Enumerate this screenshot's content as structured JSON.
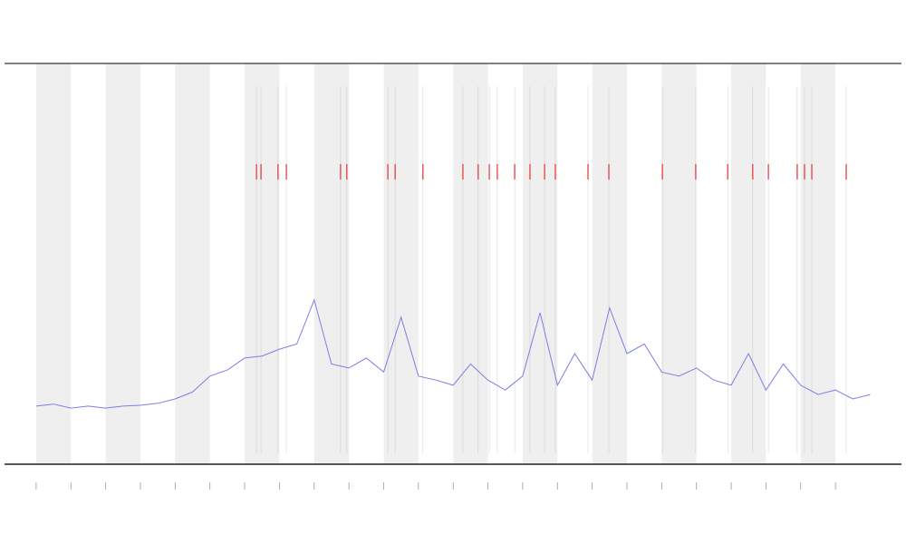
{
  "chart_data": {
    "type": "line",
    "xlim": [
      -0.91,
      24.9
    ],
    "ylim": [
      0,
      100
    ],
    "xticks": [
      0,
      1,
      2,
      3,
      4,
      5,
      6,
      7,
      8,
      9,
      10,
      11,
      12,
      13,
      14,
      15,
      16,
      17,
      18,
      19,
      20,
      21,
      22,
      23
    ],
    "bands": [
      [
        0,
        1
      ],
      [
        2,
        3
      ],
      [
        4,
        5
      ],
      [
        6,
        7
      ],
      [
        8,
        9
      ],
      [
        10,
        11
      ],
      [
        12,
        13
      ],
      [
        14,
        15
      ],
      [
        16,
        17
      ],
      [
        18,
        19
      ],
      [
        20,
        21
      ],
      [
        22,
        23
      ]
    ],
    "band_color": "#efefef",
    "events": [
      6.34,
      6.47,
      6.96,
      7.2,
      8.76,
      8.94,
      10.12,
      10.33,
      11.13,
      12.28,
      12.72,
      13.04,
      13.27,
      13.77,
      14.21,
      14.63,
      14.94,
      15.88,
      16.48,
      18.02,
      18.98,
      19.9,
      20.62,
      21.07,
      21.9,
      22.11,
      22.32,
      23.31
    ],
    "event_color": "#e03030",
    "x": [
      0,
      0.5,
      1,
      1.5,
      2,
      2.5,
      3,
      3.5,
      4,
      4.5,
      5,
      5.5,
      6,
      6.5,
      7,
      7.5,
      8,
      8.5,
      9,
      9.5,
      10,
      10.5,
      11,
      11.5,
      12,
      12.5,
      13,
      13.5,
      14,
      14.5,
      15,
      15.5,
      16,
      16.5,
      17,
      17.5,
      18,
      18.5,
      19,
      19.5,
      20,
      20.5,
      21,
      21.5,
      22,
      22.5,
      23,
      23.5,
      24
    ],
    "series": [
      {
        "color": "#7b7fe6",
        "values": [
          14.5,
          15,
          14,
          14.5,
          14,
          14.5,
          14.7,
          15.2,
          16.3,
          18,
          22,
          23.5,
          26.5,
          27,
          28.7,
          30,
          41,
          25,
          24,
          26.5,
          23,
          36.7,
          22,
          21,
          19.7,
          25,
          21,
          18.5,
          22,
          37.8,
          19.7,
          27.6,
          21,
          39,
          27.6,
          30,
          23,
          22,
          24,
          21,
          19.7,
          27.6,
          18.5,
          25,
          19.7,
          17.4,
          18.5,
          16.3,
          17.4
        ]
      }
    ]
  }
}
